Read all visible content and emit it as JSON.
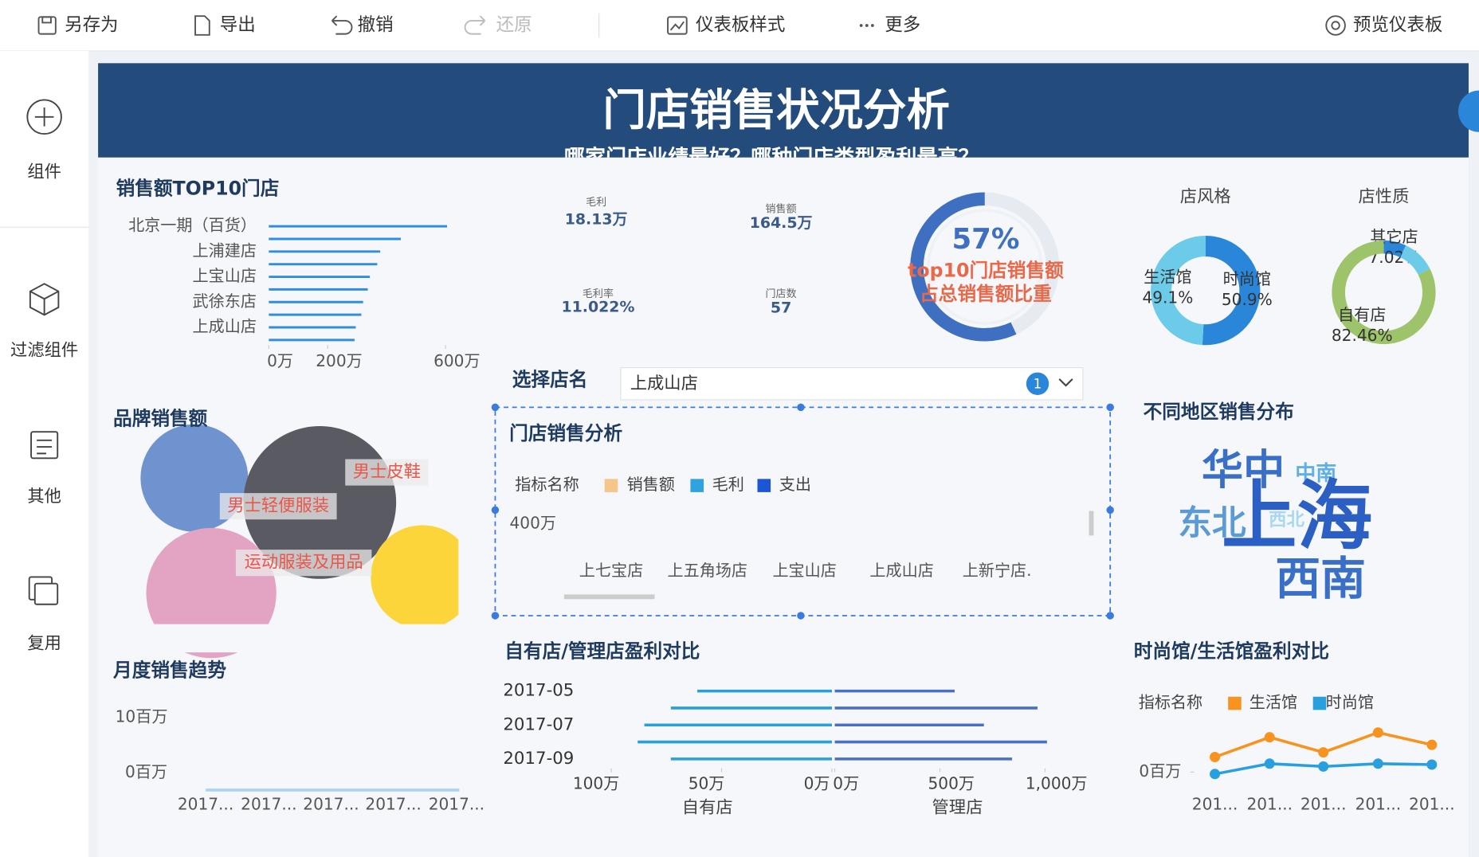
{
  "toolbar": {
    "items": [
      "另存为",
      "导出",
      "撤销",
      "还原",
      "仪表板样式",
      "更多"
    ],
    "preview": "预览仪表板"
  },
  "sidebar": {
    "items": [
      "组件",
      "过滤组件",
      "其他",
      "复用"
    ]
  },
  "dashboard": {
    "title": "门店销售状况分析",
    "subtitle": "哪家门店业绩最好？哪种门店类型盈利最高？",
    "top10": {
      "type": "bar",
      "title": "销售额TOP10门店",
      "categories": [
        "北京一期（百货）",
        null,
        "上浦建店",
        null,
        "上宝山店",
        null,
        "武徐东店",
        null,
        "上成山店",
        null
      ],
      "values": [
        605,
        448,
        378,
        368,
        343,
        336,
        320,
        314,
        295,
        291
      ],
      "color": "#2f8ee0",
      "xlim": [
        0,
        650
      ],
      "xticks": [
        {
          "value": 0,
          "label": "0万"
        },
        {
          "value": 200,
          "label": "200万"
        },
        {
          "value": 600,
          "label": "600万"
        }
      ]
    },
    "kpis": [
      {
        "label": "毛利",
        "value": "18.13万"
      },
      {
        "label": "销售额",
        "value": "164.5万"
      },
      {
        "label": "毛利率",
        "value": "11.022%"
      },
      {
        "label": "门店数",
        "value": "57"
      }
    ],
    "gauge": {
      "type": "gauge",
      "value": 57,
      "value_label": "57%",
      "label": [
        "top10门店销售额",
        "占总销售额比重"
      ],
      "color": "#3f6fc0",
      "ylim": [
        0,
        100
      ]
    },
    "store_style": {
      "type": "pie",
      "title": "店风格",
      "categories": [
        "时尚馆",
        "生活馆"
      ],
      "values": [
        50.9,
        49.1
      ],
      "value_labels": [
        "50.9%",
        "49.1%"
      ],
      "colors": [
        "#2a86d8",
        "#6ccbe8"
      ]
    },
    "store_nature": {
      "type": "pie",
      "title": "店性质",
      "categories": [
        "其它店",
        null,
        "自有店"
      ],
      "values": [
        7.02,
        10.52,
        82.46
      ],
      "value_labels": [
        "7.02%",
        null,
        "82.46%"
      ],
      "colors": [
        "#2a86d8",
        "#6ccbe8",
        "#9dc46a"
      ]
    },
    "filter": {
      "label": "选择店名",
      "selected": "上成山店",
      "badge": "1"
    },
    "store_analysis": {
      "type": "bar",
      "title": "门店销售分析",
      "legend_title": "指标名称",
      "series": [
        {
          "name": "销售额",
          "color": "#f6c58a"
        },
        {
          "name": "毛利",
          "color": "#2fa3e0"
        },
        {
          "name": "支出",
          "color": "#1a56d6"
        }
      ],
      "yticks": [
        {
          "value": 400,
          "label": "400万"
        }
      ],
      "categories": [
        "上七宝店",
        "上五角场店",
        "上宝山店",
        "上成山店",
        "上新宁店."
      ]
    },
    "brand": {
      "title": "品牌销售额",
      "labels": [
        "男士皮鞋",
        "男士轻便服装",
        "运动服装及用品"
      ]
    },
    "monthly": {
      "title": "月度销售趋势",
      "yticks": [
        {
          "value": 10,
          "label": "10百万"
        },
        {
          "value": 0,
          "label": "0百万"
        }
      ],
      "categories": [
        "2017...",
        "2017...",
        "2017...",
        "2017...",
        "2017..."
      ]
    },
    "region": {
      "title": "不同地区销售分布",
      "words": [
        "华中",
        "中南",
        "东北",
        "上海",
        "西北",
        "西南"
      ]
    },
    "profit": {
      "type": "bar",
      "title": "自有店/管理店盈利对比",
      "categories": [
        "2017-05",
        null,
        "2017-07",
        null,
        "2017-09"
      ],
      "series": [
        {
          "name": "自有店",
          "color": "#2aa0d8",
          "values": [
            61,
            73,
            85,
            88,
            73
          ],
          "xlim": [
            0,
            100
          ],
          "xticks": [
            {
              "value": 100,
              "label": "100万"
            },
            {
              "value": 50,
              "label": "50万"
            },
            {
              "value": 0,
              "label": "0万"
            }
          ]
        },
        {
          "name": "管理店",
          "color": "#4a6fc8",
          "values": [
            570,
            964,
            709,
            1009,
            843
          ],
          "xlim": [
            0,
            1000
          ],
          "xticks": [
            {
              "value": 0,
              "label": "0万"
            },
            {
              "value": 500,
              "label": "500万"
            },
            {
              "value": 1000,
              "label": "1,000万"
            }
          ]
        }
      ]
    },
    "fashion": {
      "type": "line",
      "title": "时尚馆/生活馆盈利对比",
      "legend_title": "指标名称",
      "categories": [
        "201...",
        "201...",
        "201...",
        "201...",
        "201..."
      ],
      "series": [
        {
          "name": "生活馆",
          "color": "#f7931e",
          "values": [
            0.4,
            0.925,
            0.525,
            1.05,
            0.725
          ]
        },
        {
          "name": "时尚馆",
          "color": "#2a9fe0",
          "values": [
            -0.05,
            0.225,
            0.15,
            0.225,
            0.2
          ]
        }
      ],
      "ylim": [
        -0.5,
        2
      ],
      "yticks": [
        {
          "value": 0,
          "label": "0百万"
        }
      ]
    }
  }
}
